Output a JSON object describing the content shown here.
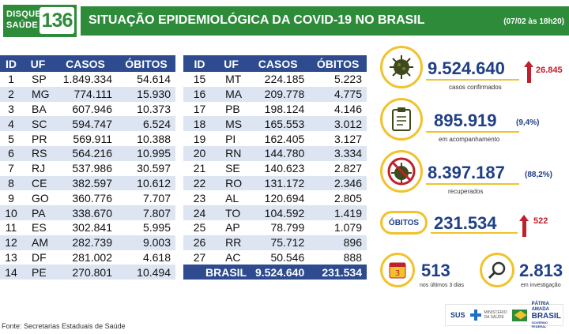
{
  "header": {
    "logo_line1": "DISQUE",
    "logo_line2": "SAÚDE",
    "logo_number": "136",
    "title": "SITUAÇÃO EPIDEMIOLÓGICA DA COVID-19 NO BRASIL",
    "date": "(07/02 às 18h20)"
  },
  "table": {
    "columns": [
      "ID",
      "UF",
      "CASOS",
      "ÓBITOS"
    ],
    "rows": [
      [
        "1",
        "SP",
        "1.849.334",
        "54.614"
      ],
      [
        "2",
        "MG",
        "774.111",
        "15.930"
      ],
      [
        "3",
        "BA",
        "607.946",
        "10.373"
      ],
      [
        "4",
        "SC",
        "594.747",
        "6.524"
      ],
      [
        "5",
        "PR",
        "569.911",
        "10.388"
      ],
      [
        "6",
        "RS",
        "564.216",
        "10.995"
      ],
      [
        "7",
        "RJ",
        "537.986",
        "30.597"
      ],
      [
        "8",
        "CE",
        "382.597",
        "10.612"
      ],
      [
        "9",
        "GO",
        "360.776",
        "7.707"
      ],
      [
        "10",
        "PA",
        "338.670",
        "7.807"
      ],
      [
        "11",
        "ES",
        "302.841",
        "5.995"
      ],
      [
        "12",
        "AM",
        "282.739",
        "9.003"
      ],
      [
        "13",
        "DF",
        "281.002",
        "4.618"
      ],
      [
        "14",
        "PE",
        "270.801",
        "10.494"
      ],
      [
        "15",
        "MT",
        "224.185",
        "5.223"
      ],
      [
        "16",
        "MA",
        "209.778",
        "4.775"
      ],
      [
        "17",
        "PB",
        "198.124",
        "4.146"
      ],
      [
        "18",
        "MS",
        "165.553",
        "3.012"
      ],
      [
        "19",
        "PI",
        "162.405",
        "3.127"
      ],
      [
        "20",
        "RN",
        "144.780",
        "3.334"
      ],
      [
        "21",
        "SE",
        "140.623",
        "2.827"
      ],
      [
        "22",
        "RO",
        "131.172",
        "2.346"
      ],
      [
        "23",
        "AL",
        "120.694",
        "2.805"
      ],
      [
        "24",
        "TO",
        "104.592",
        "1.419"
      ],
      [
        "25",
        "AP",
        "78.799",
        "1.079"
      ],
      [
        "26",
        "RR",
        "75.712",
        "896"
      ],
      [
        "27",
        "AC",
        "50.546",
        "888"
      ]
    ],
    "total": {
      "label": "BRASIL",
      "casos": "9.524.640",
      "obitos": "231.534"
    }
  },
  "summary": {
    "confirmados": {
      "value": "9.524.640",
      "delta": "26.845",
      "label": "casos confirmados",
      "icon": "virus-icon"
    },
    "acompanhamento": {
      "value": "895.919",
      "pct": "(9,4%)",
      "label": "em acompanhamento",
      "icon": "clipboard-icon"
    },
    "recuperados": {
      "value": "8.397.187",
      "pct": "(88,2%)",
      "label": "recuperados",
      "icon": "crossed-virus-icon"
    },
    "obitos": {
      "badge": "ÓBITOS",
      "value": "231.534",
      "delta": "522"
    },
    "ultimos_dias": {
      "value": "513",
      "label": "nos últimos 3 dias",
      "icon": "calendar-icon"
    },
    "investigacao": {
      "value": "2.813",
      "label": "em investigação",
      "icon": "magnifier-icon"
    }
  },
  "footer": {
    "source": "Fonte: Secretarias Estaduais de Saúde",
    "sus": "SUS",
    "ministerio": "MINISTÉRIO DA SAÚDE",
    "patria_line1": "PÁTRIA AMADA",
    "patria_line2": "BRASIL",
    "patria_line3": "GOVERNO FEDERAL"
  },
  "colors": {
    "green": "#2e8b3a",
    "navy": "#2d4b8e",
    "stripe": "#dde5f3",
    "yellow": "#f1c22b",
    "red": "#c0202b",
    "text_blue": "#1f3f87"
  }
}
